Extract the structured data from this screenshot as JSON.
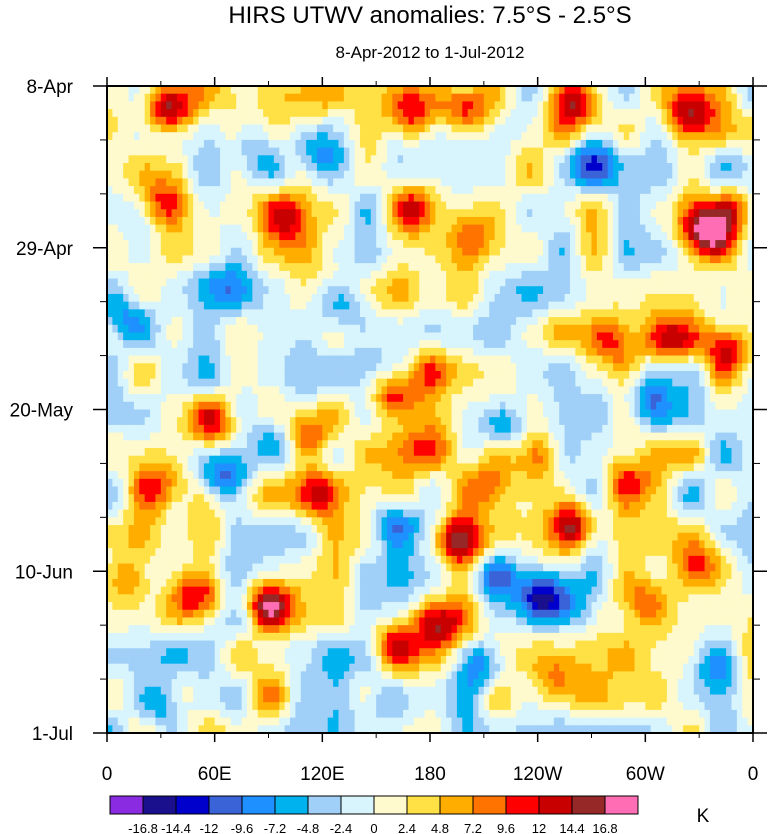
{
  "chart_data": {
    "type": "heatmap",
    "title": "HIRS UTWV anomalies: 7.5°S - 2.5°S",
    "subtitle": "8-Apr-2012 to 1-Jul-2012",
    "x_tick_labels": [
      "0",
      "60E",
      "120E",
      "180",
      "120W",
      "60W",
      "0"
    ],
    "x_ticks_deg": [
      0,
      60,
      120,
      180,
      240,
      300,
      360
    ],
    "xlim": [
      0,
      360
    ],
    "y_tick_labels": [
      "8-Apr",
      "29-Apr",
      "20-May",
      "10-Jun",
      "1-Jul"
    ],
    "y_ticks_day": [
      0,
      21,
      42,
      63,
      84
    ],
    "ylim": [
      0,
      84
    ],
    "colorbar": {
      "levels": [
        "-16.8",
        "-14.4",
        "-12",
        "-9.6",
        "-7.2",
        "-4.8",
        "-2.4",
        "0",
        "2.4",
        "4.8",
        "7.2",
        "9.6",
        "12",
        "14.4",
        "16.8"
      ],
      "colors": [
        "#8a2be2",
        "#1a0f8c",
        "#0000cd",
        "#3a63d8",
        "#1e90ff",
        "#00b2ee",
        "#a0cff8",
        "#d8f4fc",
        "#fffacd",
        "#ffe145",
        "#ffae00",
        "#ff7400",
        "#ff0000",
        "#c80000",
        "#962828",
        "#ff6eb4"
      ],
      "unit_label": "K"
    },
    "anomaly_features": [
      {
        "lon": 35,
        "day": 3,
        "value": 15
      },
      {
        "lon": 110,
        "day": 1,
        "value": 9
      },
      {
        "lon": 170,
        "day": 4,
        "value": 13
      },
      {
        "lon": 200,
        "day": 3,
        "value": 12
      },
      {
        "lon": 262,
        "day": 2,
        "value": 14
      },
      {
        "lon": 325,
        "day": 4,
        "value": 14
      },
      {
        "lon": 30,
        "day": 15,
        "value": 9
      },
      {
        "lon": 100,
        "day": 17,
        "value": 11
      },
      {
        "lon": 170,
        "day": 16,
        "value": 13
      },
      {
        "lon": 205,
        "day": 19,
        "value": 7
      },
      {
        "lon": 335,
        "day": 19,
        "value": 18
      },
      {
        "lon": 350,
        "day": 16,
        "value": 10
      },
      {
        "lon": 315,
        "day": 33,
        "value": 11
      },
      {
        "lon": 345,
        "day": 34,
        "value": 12
      },
      {
        "lon": 280,
        "day": 33,
        "value": 9
      },
      {
        "lon": 180,
        "day": 37,
        "value": 7
      },
      {
        "lon": 160,
        "day": 40,
        "value": 12
      },
      {
        "lon": 110,
        "day": 45,
        "value": 12
      },
      {
        "lon": 60,
        "day": 44,
        "value": 9
      },
      {
        "lon": 30,
        "day": 52,
        "value": 10
      },
      {
        "lon": 120,
        "day": 53,
        "value": 12
      },
      {
        "lon": 180,
        "day": 47,
        "value": 9
      },
      {
        "lon": 240,
        "day": 48,
        "value": 11
      },
      {
        "lon": 260,
        "day": 57,
        "value": 14
      },
      {
        "lon": 290,
        "day": 51,
        "value": 8
      },
      {
        "lon": 195,
        "day": 59,
        "value": 13
      },
      {
        "lon": 210,
        "day": 52,
        "value": 7
      },
      {
        "lon": 90,
        "day": 67,
        "value": 14
      },
      {
        "lon": 50,
        "day": 66,
        "value": 12
      },
      {
        "lon": 10,
        "day": 64,
        "value": 9
      },
      {
        "lon": 185,
        "day": 70,
        "value": 12
      },
      {
        "lon": 160,
        "day": 72,
        "value": 10
      },
      {
        "lon": 230,
        "day": 65,
        "value": 7
      },
      {
        "lon": 300,
        "day": 67,
        "value": 8
      },
      {
        "lon": 330,
        "day": 62,
        "value": 9
      },
      {
        "lon": 345,
        "day": 74,
        "value": 6
      },
      {
        "lon": 90,
        "day": 79,
        "value": 7
      },
      {
        "lon": 250,
        "day": 77,
        "value": 6
      },
      {
        "lon": 60,
        "day": 26,
        "value": -7
      },
      {
        "lon": 130,
        "day": 28,
        "value": -9
      },
      {
        "lon": 65,
        "day": 51,
        "value": -12
      },
      {
        "lon": 95,
        "day": 46,
        "value": -9
      },
      {
        "lon": 160,
        "day": 57,
        "value": -9
      },
      {
        "lon": 220,
        "day": 64,
        "value": -14
      },
      {
        "lon": 240,
        "day": 66,
        "value": -16
      },
      {
        "lon": 255,
        "day": 68,
        "value": -12
      },
      {
        "lon": 220,
        "day": 44,
        "value": -9
      },
      {
        "lon": 30,
        "day": 80,
        "value": -9
      },
      {
        "lon": 210,
        "day": 75,
        "value": -11
      },
      {
        "lon": 270,
        "day": 10,
        "value": -8
      },
      {
        "lon": 300,
        "day": 40,
        "value": -7
      },
      {
        "lon": 10,
        "day": 30,
        "value": -7
      },
      {
        "lon": 340,
        "day": 75,
        "value": -10
      },
      {
        "lon": 150,
        "day": 80,
        "value": -7
      },
      {
        "lon": 120,
        "day": 9,
        "value": -8
      },
      {
        "lon": 80,
        "day": 7,
        "value": -7
      }
    ]
  }
}
